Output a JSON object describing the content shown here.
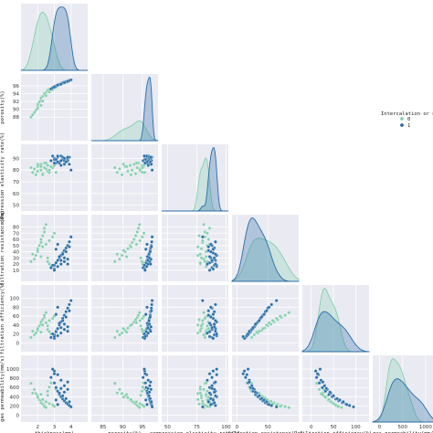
{
  "chart_data": {
    "type": "scatter",
    "variables": [
      {
        "key": "thickness",
        "label": "thickness(mm)",
        "lim": [
          1,
          5
        ],
        "ticks": [
          {
            "v": 2,
            "t": "2"
          },
          {
            "v": 3,
            "t": "3"
          },
          {
            "v": 4,
            "t": "4"
          }
        ]
      },
      {
        "key": "porosity",
        "label": "porosity(%)",
        "lim": [
          82,
          99
        ],
        "ticks": [
          {
            "v": 85,
            "t": "85"
          },
          {
            "v": 90,
            "t": "90"
          },
          {
            "v": 95,
            "t": "95"
          }
        ]
      },
      {
        "key": "compression",
        "label": "compression elasticity rate(%)",
        "lim": [
          45,
          102
        ],
        "ticks": [
          {
            "v": 50,
            "t": "50"
          },
          {
            "v": 75,
            "t": "75"
          },
          {
            "v": 100,
            "t": "100"
          }
        ]
      },
      {
        "key": "resistance",
        "label": "filtration resistance(Pa)",
        "lim": [
          -8,
          100
        ],
        "ticks": [
          {
            "v": 0,
            "t": "0"
          },
          {
            "v": 50,
            "t": "50"
          }
        ]
      },
      {
        "key": "efficiency",
        "label": "filtration efficiency(%)",
        "lim": [
          -20,
          130
        ],
        "ticks": [
          {
            "v": 0,
            "t": "0"
          },
          {
            "v": 50,
            "t": "50"
          },
          {
            "v": 100,
            "t": "100"
          }
        ]
      },
      {
        "key": "permeability",
        "label": "gas permeability(mm/s)",
        "lim": [
          -150,
          1300
        ],
        "ticks": [
          {
            "v": 0,
            "t": "0"
          },
          {
            "v": 500,
            "t": "500"
          },
          {
            "v": 1000,
            "t": "1000"
          }
        ]
      }
    ],
    "ylabels": [
      "porosity(%)",
      "compression elasticity rate(%)",
      "filtration resistance(Pa)",
      "filtration efficiency(%)",
      "gas permeability(mm/s)"
    ],
    "yticks": [
      [
        {
          "v": 88,
          "t": "88"
        },
        {
          "v": 90,
          "t": "90"
        },
        {
          "v": 92,
          "t": "92"
        },
        {
          "v": 94,
          "t": "94"
        },
        {
          "v": 96,
          "t": "96"
        }
      ],
      [
        {
          "v": 50,
          "t": "50"
        },
        {
          "v": 60,
          "t": "60"
        },
        {
          "v": 70,
          "t": "70"
        },
        {
          "v": 80,
          "t": "80"
        },
        {
          "v": 90,
          "t": "90"
        }
      ],
      [
        {
          "v": 10,
          "t": "10"
        },
        {
          "v": 20,
          "t": "20"
        },
        {
          "v": 30,
          "t": "30"
        },
        {
          "v": 40,
          "t": "40"
        },
        {
          "v": 50,
          "t": "50"
        },
        {
          "v": 60,
          "t": "60"
        },
        {
          "v": 70,
          "t": "70"
        },
        {
          "v": 80,
          "t": "80"
        }
      ],
      [
        {
          "v": 0,
          "t": "0"
        },
        {
          "v": 20,
          "t": "20"
        },
        {
          "v": 40,
          "t": "40"
        },
        {
          "v": 60,
          "t": "60"
        },
        {
          "v": 80,
          "t": "80"
        },
        {
          "v": 100,
          "t": "100"
        }
      ],
      [
        {
          "v": 0,
          "t": "0"
        },
        {
          "v": 200,
          "t": "200"
        },
        {
          "v": 400,
          "t": "400"
        },
        {
          "v": 600,
          "t": "600"
        },
        {
          "v": 800,
          "t": "800"
        },
        {
          "v": 1000,
          "t": "1000"
        }
      ]
    ],
    "legend": {
      "title": "Intercalation or not",
      "placement": "right",
      "entries": [
        "0",
        "1"
      ]
    },
    "grid": true,
    "series": [
      {
        "name": "0",
        "color": "#86cfae",
        "points": [
          [
            1.6,
            88.0,
            82,
            24,
            12,
            690
          ],
          [
            1.8,
            89.2,
            81,
            28,
            18,
            560
          ],
          [
            1.9,
            89.8,
            76,
            34,
            22,
            470
          ],
          [
            2.0,
            90.6,
            83,
            40,
            28,
            420
          ],
          [
            2.0,
            91.3,
            79,
            45,
            33,
            380
          ],
          [
            2.1,
            91.9,
            84,
            50,
            38,
            330
          ],
          [
            2.2,
            92.4,
            80,
            55,
            42,
            300
          ],
          [
            2.2,
            92.9,
            85,
            60,
            47,
            270
          ],
          [
            2.3,
            93.3,
            77,
            66,
            52,
            240
          ],
          [
            2.4,
            93.7,
            82,
            72,
            57,
            210
          ],
          [
            2.4,
            94.0,
            86,
            78,
            62,
            185
          ],
          [
            2.5,
            94.3,
            81,
            84,
            68,
            165
          ],
          [
            2.6,
            94.6,
            79,
            30,
            38,
            430
          ],
          [
            2.6,
            94.9,
            84,
            24,
            30,
            520
          ],
          [
            2.7,
            95.1,
            78,
            20,
            25,
            610
          ],
          [
            2.8,
            95.3,
            83,
            16,
            20,
            700
          ],
          [
            1.7,
            88.6,
            78,
            36,
            26,
            480
          ],
          [
            2.0,
            90.2,
            85,
            42,
            32,
            390
          ],
          [
            2.3,
            92.1,
            76,
            48,
            40,
            340
          ],
          [
            2.5,
            93.5,
            86,
            52,
            45,
            290
          ],
          [
            2.7,
            94.4,
            80,
            58,
            50,
            250
          ],
          [
            2.9,
            95.0,
            82,
            64,
            55,
            220
          ],
          [
            3.0,
            95.4,
            84,
            70,
            60,
            190
          ],
          [
            3.1,
            95.6,
            78,
            22,
            28,
            560
          ],
          [
            2.2,
            91.0,
            83,
            32,
            24,
            450
          ]
        ]
      },
      {
        "name": "1",
        "color": "#2a6ea8",
        "points": [
          [
            2.8,
            95.2,
            88,
            14,
            12,
            820
          ],
          [
            3.0,
            95.8,
            90,
            18,
            18,
            700
          ],
          [
            3.1,
            96.0,
            86,
            22,
            25,
            600
          ],
          [
            3.2,
            96.2,
            91,
            26,
            32,
            520
          ],
          [
            3.3,
            96.4,
            87,
            30,
            40,
            450
          ],
          [
            3.4,
            96.6,
            92,
            34,
            47,
            400
          ],
          [
            3.5,
            96.8,
            89,
            38,
            55,
            350
          ],
          [
            3.6,
            97.0,
            85,
            42,
            62,
            310
          ],
          [
            3.7,
            97.1,
            90,
            46,
            70,
            270
          ],
          [
            3.8,
            97.3,
            88,
            50,
            78,
            240
          ],
          [
            3.9,
            97.4,
            91,
            56,
            86,
            210
          ],
          [
            4.0,
            97.5,
            80,
            64,
            95,
            180
          ],
          [
            3.0,
            95.6,
            89,
            12,
            10,
            960
          ],
          [
            3.2,
            96.1,
            92,
            16,
            16,
            880
          ],
          [
            3.4,
            96.5,
            84,
            20,
            22,
            760
          ],
          [
            3.6,
            96.9,
            88,
            24,
            30,
            640
          ],
          [
            3.8,
            97.2,
            90,
            28,
            36,
            560
          ],
          [
            3.3,
            96.3,
            86,
            32,
            44,
            480
          ],
          [
            3.5,
            96.7,
            91,
            36,
            50,
            420
          ],
          [
            3.7,
            97.0,
            87,
            40,
            58,
            360
          ],
          [
            3.1,
            95.9,
            89,
            44,
            64,
            330
          ],
          [
            3.9,
            97.3,
            85,
            48,
            72,
            290
          ],
          [
            2.9,
            95.5,
            92,
            18,
            20,
            1000
          ],
          [
            3.4,
            96.4,
            88,
            26,
            34,
            580
          ],
          [
            3.6,
            96.8,
            90,
            30,
            42,
            500
          ],
          [
            3.2,
            96.2,
            87,
            52,
            80,
            230
          ],
          [
            3.8,
            97.1,
            91,
            20,
            26,
            720
          ],
          [
            3.0,
            95.7,
            86,
            10,
            14,
            900
          ]
        ]
      }
    ]
  }
}
